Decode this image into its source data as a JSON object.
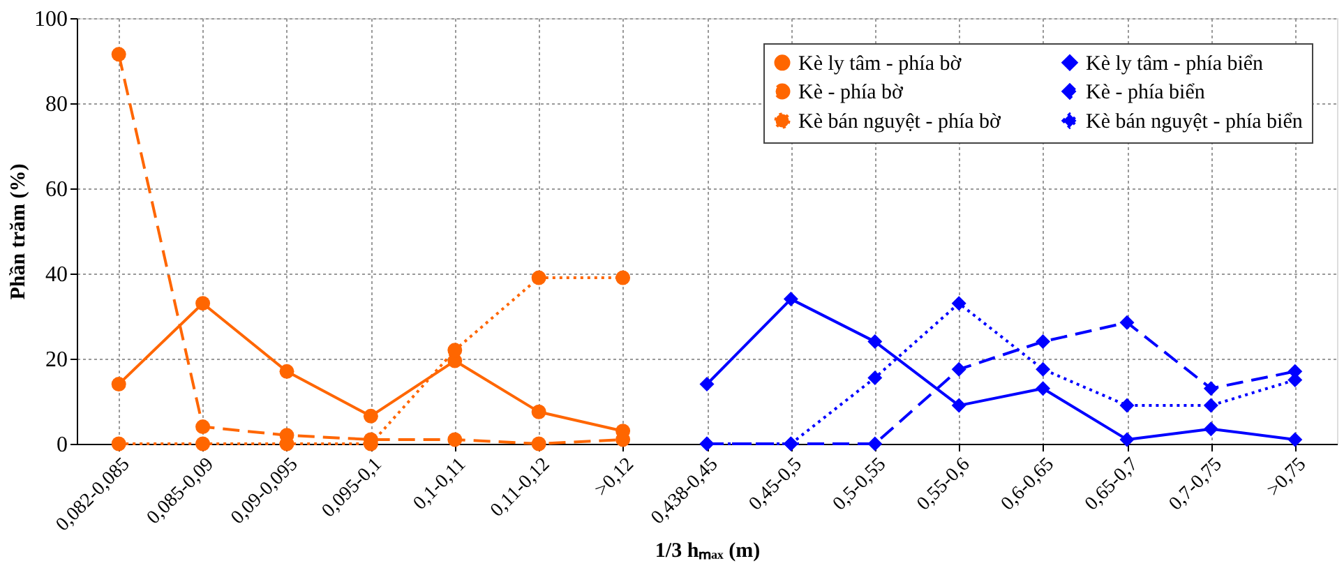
{
  "chart_data": {
    "type": "line",
    "xlabel": "1/3 hₘₐₓ (m)",
    "ylabel": "Phần trăm (%)",
    "categories": [
      "0,082-0,085",
      "0,085-0,09",
      "0,09-0,095",
      "0,095-0,1",
      "0,1-0,11",
      "0,11-0,12",
      ">0,12",
      "0,438-0,45",
      "0,45-0,5",
      "0,5-0,55",
      "0,55-0,6",
      "0,6-0,65",
      "0,65-0,7",
      "0,7-0,75",
      ">0,75"
    ],
    "ylim": [
      0,
      100
    ],
    "yticks": [
      0,
      20,
      40,
      60,
      80,
      100
    ],
    "grid": true,
    "legend": "top right",
    "series": [
      {
        "name": "Kè ly tâm - phía bờ",
        "color": "#ff6600",
        "marker": "circle",
        "line_style": "solid",
        "values": [
          14,
          33,
          17,
          6.5,
          19.5,
          7.5,
          3,
          null,
          null,
          null,
          null,
          null,
          null,
          null,
          null
        ]
      },
      {
        "name": "Kè - phía bờ",
        "color": "#ff6600",
        "marker": "circle",
        "line_style": "dashed",
        "values": [
          91.5,
          4,
          2,
          1,
          1,
          0,
          1,
          null,
          null,
          null,
          null,
          null,
          null,
          null,
          null
        ]
      },
      {
        "name": "Kè bán nguyệt - phía bờ",
        "color": "#ff6600",
        "marker": "circle",
        "line_style": "dotted",
        "values": [
          0,
          0,
          0,
          0,
          22,
          39,
          39,
          null,
          null,
          null,
          null,
          null,
          null,
          null,
          null
        ]
      },
      {
        "name": "Kè ly tâm - phía biển",
        "color": "#0000ff",
        "marker": "diamond",
        "line_style": "solid",
        "values": [
          null,
          null,
          null,
          null,
          null,
          null,
          null,
          14,
          34,
          24,
          9,
          13,
          1,
          3.5,
          1
        ]
      },
      {
        "name": "Kè - phía biển",
        "color": "#0000ff",
        "marker": "diamond",
        "line_style": "dashed",
        "values": [
          null,
          null,
          null,
          null,
          null,
          null,
          null,
          0,
          0,
          0,
          17.5,
          24,
          28.5,
          13,
          17
        ]
      },
      {
        "name": "Kè bán nguyệt - phía biển",
        "color": "#0000ff",
        "marker": "diamond",
        "line_style": "dotted",
        "values": [
          null,
          null,
          null,
          null,
          null,
          null,
          null,
          0,
          0,
          15.5,
          33,
          17.5,
          9,
          9,
          15
        ]
      }
    ]
  }
}
